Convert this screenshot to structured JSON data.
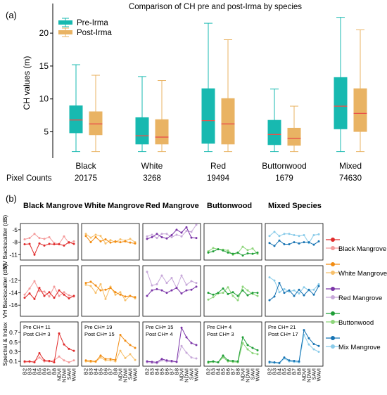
{
  "panel_a": {
    "label": "(a)",
    "chart_data": {
      "type": "box",
      "title": "Comparison of CH pre and post-Irma by species",
      "ylabel": "CH values (m)",
      "xlabel": "",
      "ylim": [
        1.0,
        24.5
      ],
      "yticks": [
        5,
        10,
        15,
        20
      ],
      "categories": [
        "Black",
        "White",
        "Red",
        "Buttonwood",
        "Mixed"
      ],
      "legend": {
        "position": "top-left",
        "entries": [
          "Pre-Irma",
          "Post-Irma"
        ]
      },
      "series": [
        {
          "name": "Pre-Irma",
          "color": "#17b9b0",
          "median_color": "#e8524a",
          "boxes": [
            {
              "whislo": 2.0,
              "q1": 4.8,
              "med": 6.8,
              "q3": 9.0,
              "whishi": 15.2
            },
            {
              "whislo": 2.0,
              "q1": 3.1,
              "med": 4.4,
              "q3": 7.2,
              "whishi": 13.4
            },
            {
              "whislo": 2.0,
              "q1": 3.2,
              "med": 6.7,
              "q3": 11.6,
              "whishi": 21.5
            },
            {
              "whislo": 2.0,
              "q1": 3.0,
              "med": 4.6,
              "q3": 6.8,
              "whishi": 11.5
            },
            {
              "whislo": 2.0,
              "q1": 5.4,
              "med": 8.9,
              "q3": 13.3,
              "whishi": 22.4
            }
          ]
        },
        {
          "name": "Post-Irma",
          "color": "#e9b363",
          "median_color": "#e8524a",
          "boxes": [
            {
              "whislo": 2.0,
              "q1": 4.5,
              "med": 6.2,
              "q3": 8.1,
              "whishi": 13.6
            },
            {
              "whislo": 2.0,
              "q1": 3.1,
              "med": 4.2,
              "q3": 6.9,
              "whishi": 12.8
            },
            {
              "whislo": 2.0,
              "q1": 3.1,
              "med": 6.2,
              "q3": 10.1,
              "whishi": 19.0
            },
            {
              "whislo": 2.0,
              "q1": 2.9,
              "med": 4.0,
              "q3": 5.6,
              "whishi": 8.9
            },
            {
              "whislo": 2.0,
              "q1": 5.0,
              "med": 7.8,
              "q3": 11.6,
              "whishi": 20.5
            }
          ]
        }
      ]
    },
    "pixel_counts": {
      "label": "Pixel Counts",
      "values": [
        "20175",
        "3268",
        "19494",
        "1679",
        "74630"
      ]
    }
  },
  "panel_b": {
    "label": "(b)",
    "chart_data": {
      "type": "line",
      "columns": [
        "Black Mangrove",
        "White Mangrove",
        "Red Mangrove",
        "Buttonwood",
        "Mixed Species"
      ],
      "x_categories": [
        "B2",
        "B3",
        "B4",
        "B5",
        "B6",
        "B7",
        "B8",
        "NDVI",
        "NDWI",
        "SAVI",
        "WAVI"
      ],
      "rows": [
        {
          "ylabel": "VV Backscatter (dB)",
          "ylim": [
            -12.3,
            -3.5
          ],
          "yticks": [
            -5,
            -8,
            -11
          ],
          "ytick_labels": [
            "-5",
            "-8",
            "-11"
          ]
        },
        {
          "ylabel": "VH Backscatter (dB)",
          "ylim": [
            -17.8,
            -9.6
          ],
          "yticks": [
            -12,
            -14,
            -16
          ],
          "ytick_labels": [
            "-12",
            "-14",
            "-16"
          ]
        },
        {
          "ylabel": "Spectral & Index",
          "ylim": [
            0.0,
            0.92
          ],
          "yticks": [
            0.1,
            0.3,
            0.5,
            0.7
          ],
          "ytick_labels": [
            "0.1",
            "0.3",
            "0.5",
            "0.7"
          ]
        }
      ],
      "species": [
        {
          "pre_color": "#e02b2b",
          "post_color": "#f49a9a",
          "pre_ch": "Pre CH= 11",
          "post_ch": "Post CH= 3",
          "vv_pre": [
            -8.5,
            -8.4,
            -11.0,
            -8.3,
            -8.8,
            -8.4,
            -8.5,
            -8.5,
            -8.8,
            -8.0,
            -8.4
          ],
          "vv_post": [
            -7.3,
            -7.0,
            -6.0,
            -7.0,
            -7.2,
            -6.8,
            -8.2,
            -8.4,
            -6.6,
            -8.2,
            -7.8
          ],
          "vh_pre": [
            -14.8,
            -14.1,
            -15.0,
            -13.2,
            -14.5,
            -13.9,
            -14.8,
            -13.6,
            -14.3,
            -14.9,
            -14.5
          ],
          "vh_post": [
            -14.3,
            -13.3,
            -12.1,
            -13.7,
            -13.8,
            -14.6,
            -13.0,
            -14.5,
            -13.9,
            -14.4,
            -14.6
          ],
          "spec_pre": [
            0.1,
            0.1,
            0.08,
            0.27,
            0.12,
            0.11,
            0.08,
            0.68,
            0.45,
            0.36,
            0.32
          ],
          "spec_post": [
            0.08,
            0.09,
            0.1,
            0.18,
            0.1,
            0.1,
            0.12,
            0.2,
            0.12,
            0.08,
            0.12
          ]
        },
        {
          "pre_color": "#f28c12",
          "post_color": "#f7c06b",
          "pre_ch": "Pre CH= 19",
          "post_ch": "Post CH= 15",
          "vv_pre": [
            -6.5,
            -8.0,
            -6.8,
            -7.8,
            -7.3,
            -8.1,
            -7.8,
            -8.0,
            -7.8,
            -8.1,
            -8.3
          ],
          "vv_post": [
            -6.0,
            -6.9,
            -6.2,
            -6.5,
            -8.3,
            -7.5,
            -8.0,
            -7.3,
            -7.6,
            -7.2,
            -8.0
          ],
          "vh_pre": [
            -12.4,
            -12.2,
            -12.8,
            -13.6,
            -13.5,
            -13.2,
            -13.9,
            -14.3,
            -14.6,
            -14.5,
            -14.7
          ],
          "vh_post": [
            -12.7,
            -12.9,
            -14.0,
            -12.6,
            -15.0,
            -13.0,
            -14.3,
            -13.9,
            -15.2,
            -14.5,
            -14.9
          ],
          "spec_pre": [
            0.12,
            0.11,
            0.1,
            0.22,
            0.15,
            0.15,
            0.13,
            0.65,
            0.53,
            0.44,
            0.38
          ],
          "spec_post": [
            0.1,
            0.09,
            0.09,
            0.18,
            0.12,
            0.12,
            0.1,
            0.32,
            0.17,
            0.25,
            0.13
          ]
        },
        {
          "pre_color": "#7b35a8",
          "post_color": "#c7a8d9",
          "pre_ch": "Pre CH= 15",
          "post_ch": "Post CH= 4",
          "vv_pre": [
            -7.2,
            -6.8,
            -6.0,
            -6.8,
            -7.1,
            -6.3,
            -5.0,
            -5.7,
            -4.4,
            -6.9,
            -7.0
          ],
          "vv_post": [
            -6.6,
            -6.2,
            -7.0,
            -6.0,
            -6.0,
            -6.8,
            -6.2,
            -6.6,
            -5.3,
            -5.5,
            -3.8
          ],
          "vh_pre": [
            -14.5,
            -13.6,
            -13.4,
            -13.6,
            -14.0,
            -13.6,
            -13.2,
            -14.1,
            -13.6,
            -13.5,
            -13.0
          ],
          "vh_post": [
            -10.6,
            -12.8,
            -12.6,
            -11.2,
            -12.4,
            -11.6,
            -13.2,
            -11.2,
            -12.7,
            -12.1,
            -12.4
          ],
          "spec_pre": [
            0.1,
            0.09,
            0.08,
            0.15,
            0.12,
            0.11,
            0.09,
            0.8,
            0.6,
            0.48,
            0.44
          ],
          "spec_post": [
            0.08,
            0.07,
            0.06,
            0.12,
            0.1,
            0.09,
            0.09,
            0.42,
            0.28,
            0.18,
            0.16
          ]
        },
        {
          "pre_color": "#1e9e36",
          "post_color": "#8dd57a",
          "pre_ch": "Pre CH= 4",
          "post_ch": "Post CH= 3",
          "vv_pre": [
            -10.5,
            -10.2,
            -9.7,
            -10.0,
            -10.5,
            -10.8,
            -10.5,
            -11.2,
            -10.7,
            -10.8,
            -10.5
          ],
          "vv_post": [
            -10.2,
            -9.4,
            -9.7,
            -9.8,
            -10.0,
            -11.0,
            -10.6,
            -9.1,
            -9.9,
            -9.5,
            -10.8
          ],
          "vh_pre": [
            -14.0,
            -14.3,
            -14.0,
            -13.3,
            -14.2,
            -13.9,
            -14.5,
            -13.6,
            -14.4,
            -14.0,
            -14.0
          ],
          "vh_post": [
            -15.1,
            -14.7,
            -14.1,
            -14.0,
            -13.1,
            -14.5,
            -15.2,
            -13.0,
            -13.6,
            -14.2,
            -14.5
          ],
          "spec_pre": [
            0.09,
            0.1,
            0.08,
            0.22,
            0.12,
            0.11,
            0.1,
            0.6,
            0.44,
            0.38,
            0.33
          ],
          "spec_post": [
            0.07,
            0.09,
            0.08,
            0.18,
            0.1,
            0.09,
            0.08,
            0.48,
            0.35,
            0.27,
            0.25
          ]
        },
        {
          "pre_color": "#1673b3",
          "post_color": "#89cbe9",
          "pre_ch": "Pre CH= 21",
          "post_ch": "Post CH= 17",
          "vv_pre": [
            -8.2,
            -8.9,
            -7.6,
            -8.5,
            -8.5,
            -8.0,
            -8.3,
            -8.0,
            -8.0,
            -8.6,
            -7.8
          ],
          "vv_post": [
            -6.5,
            -5.5,
            -6.5,
            -6.0,
            -6.0,
            -6.3,
            -6.5,
            -6.3,
            -8.2,
            -6.3,
            -6.1
          ],
          "vh_pre": [
            -15.2,
            -14.6,
            -12.4,
            -14.0,
            -13.6,
            -14.5,
            -13.5,
            -14.4,
            -13.5,
            -14.3,
            -12.9
          ],
          "vh_post": [
            -11.5,
            -12.0,
            -13.9,
            -13.4,
            -13.8,
            -13.6,
            -14.1,
            -13.1,
            -13.6,
            -13.5,
            -12.6
          ],
          "spec_pre": [
            0.09,
            0.08,
            0.07,
            0.18,
            0.12,
            0.11,
            0.1,
            0.75,
            0.58,
            0.46,
            0.42
          ],
          "spec_post": [
            0.07,
            0.07,
            0.06,
            0.16,
            0.1,
            0.09,
            0.08,
            0.65,
            0.45,
            0.35,
            0.3
          ]
        }
      ],
      "legend": {
        "position": "right",
        "entries": [
          {
            "label": "Black Mangrove",
            "pre_color": "#e02b2b",
            "post_color": "#f49a9a"
          },
          {
            "label": "White Mangrove",
            "pre_color": "#f28c12",
            "post_color": "#f7c06b"
          },
          {
            "label": "Red Mangrove",
            "pre_color": "#7b35a8",
            "post_color": "#c7a8d9"
          },
          {
            "label": "Buttonwood",
            "pre_color": "#1e9e36",
            "post_color": "#8dd57a"
          },
          {
            "label": "Mix Mangrove",
            "pre_color": "#1673b3",
            "post_color": "#89cbe9"
          }
        ]
      }
    }
  }
}
